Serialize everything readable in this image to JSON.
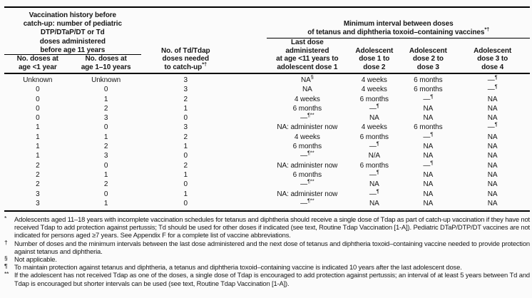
{
  "table": {
    "header": {
      "left_group_title_lines": [
        "Vaccination history before",
        "catch-up: number of pediatric",
        "DTP/DTaP/DT or Td",
        "doses administered",
        "before age 11 years"
      ],
      "left_cols": [
        [
          "No. doses at",
          "age <1 year"
        ],
        [
          "No. doses at",
          "age 1–10 years"
        ]
      ],
      "mid_col_lines": [
        "No. of Td/Tdap",
        "doses needed",
        "to catch-up^*†"
      ],
      "right_group_title_lines": [
        "Minimum interval between doses",
        "of tetanus and diphtheria toxoid–containing vaccines^*†"
      ],
      "right_cols": [
        [
          "Last dose",
          "administered",
          "at age <11 years to",
          "adolescent dose 1"
        ],
        [
          "Adolescent",
          "dose 1 to",
          "dose 2"
        ],
        [
          "Adolescent",
          "dose 2 to",
          "dose 3"
        ],
        [
          "Adolescent",
          "dose 3 to",
          "dose 4"
        ]
      ]
    },
    "rows": [
      [
        "Unknown",
        "Unknown",
        "3",
        "NA^§",
        "4 weeks",
        "6 months",
        "—^¶"
      ],
      [
        "0",
        "0",
        "3",
        "NA",
        "4 weeks",
        "6 months",
        "—^¶"
      ],
      [
        "0",
        "1",
        "2",
        "4 weeks",
        "6 months",
        "—^¶",
        "NA"
      ],
      [
        "0",
        "2",
        "1",
        "6 months",
        "—^¶",
        "NA",
        "NA"
      ],
      [
        "0",
        "3",
        "0",
        "—^¶**",
        "NA",
        "NA",
        "NA"
      ],
      [
        "1",
        "0",
        "3",
        "NA: administer now",
        "4 weeks",
        "6 months",
        "—^¶"
      ],
      [
        "1",
        "1",
        "2",
        "4 weeks",
        "6 months",
        "—^¶",
        "NA"
      ],
      [
        "1",
        "2",
        "1",
        "6 months",
        "—^¶",
        "NA",
        "NA"
      ],
      [
        "1",
        "3",
        "0",
        "—^¶**",
        "N/A",
        "NA",
        "NA"
      ],
      [
        "2",
        "0",
        "2",
        "NA: administer now",
        "6 months",
        "—^¶",
        "NA"
      ],
      [
        "2",
        "1",
        "1",
        "6 months",
        "—^¶",
        "NA",
        "NA"
      ],
      [
        "2",
        "2",
        "0",
        "—^¶**",
        "NA",
        "NA",
        "NA"
      ],
      [
        "3",
        "0",
        "1",
        "NA: administer now",
        "—^¶",
        "NA",
        "NA"
      ],
      [
        "3",
        "1",
        "0",
        "—^¶**",
        "NA",
        "NA",
        "NA"
      ]
    ]
  },
  "footnotes": [
    {
      "marker": "*",
      "text": "Adolescents aged 11–18 years with incomplete vaccination schedules for tetanus and diphtheria should receive a single dose of Tdap as part of catch-up vaccination if they have not received Tdap to add protection against pertussis; Td should be used for other doses if indicated (see text, Routine Tdap Vaccination [1-A]). Pediatric DTaP/DTP/DT vaccines are not indicated for persons aged ≥7 years. See Appendix F for a complete list of vaccine abbreviations."
    },
    {
      "marker": "†",
      "text": "Number of doses and the minimum intervals between the last dose administered and the next dose of tetanus and diphtheria toxoid–containing vaccine needed to provide protection against tetanus and diphtheria."
    },
    {
      "marker": "§",
      "text": "Not applicable."
    },
    {
      "marker": "¶",
      "text": "To maintain protection against tetanus and diphtheria, a tetanus and diphtheria toxoid–containing vaccine is indicated 10 years after the last adolescent dose."
    },
    {
      "marker": "**",
      "text": "If the adolescent has not received Tdap as one of the doses, a single dose of Tdap is encouraged to add protection against pertussis; an interval of at least 5 years between Td and Tdap is encouraged but shorter intervals can be used (see text, Routine Tdap Vaccination [1-A])."
    }
  ],
  "colors": {
    "text": "#161616",
    "rule": "#000000",
    "background": "#fbfbfb"
  }
}
